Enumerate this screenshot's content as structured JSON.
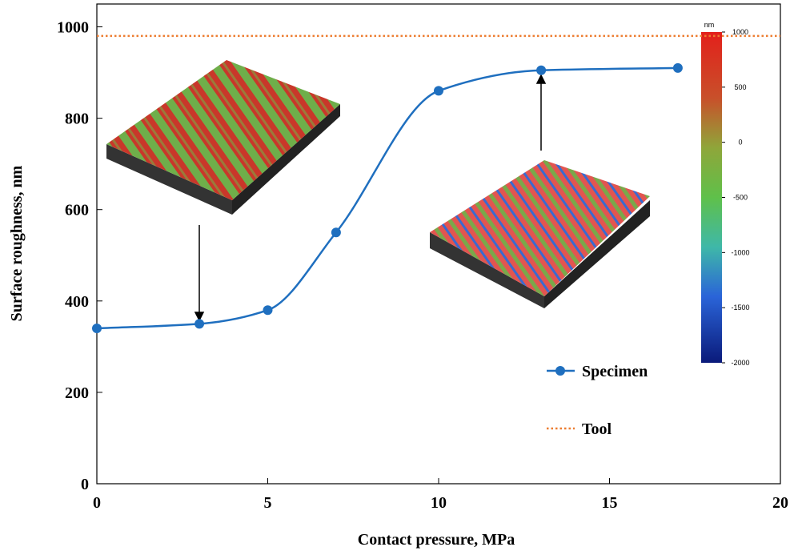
{
  "chart_data": {
    "type": "line",
    "x_label": "Contact pressure, MPa",
    "y_label": "Surface roughness, nm",
    "xlim": [
      0,
      20
    ],
    "xticks": [
      0,
      5,
      10,
      15,
      20
    ],
    "ylim": [
      0,
      1050
    ],
    "yticks": [
      0,
      200,
      400,
      600,
      800,
      1000
    ],
    "legend": "center right",
    "series": [
      {
        "name": "Specimen",
        "color": "#1f6fbf",
        "style": "solid",
        "marker": true,
        "x": [
          0,
          3,
          5,
          7,
          10,
          13,
          17
        ],
        "values": [
          340,
          350,
          380,
          550,
          860,
          905,
          910
        ]
      },
      {
        "name": "Tool",
        "color": "#ed7d31",
        "style": "dotted",
        "marker": false,
        "x": [
          0,
          20
        ],
        "values": [
          980,
          980
        ]
      }
    ],
    "colorbar": {
      "label": "nm",
      "clim": [
        -2000,
        1000
      ],
      "ticks": [
        1000,
        500,
        0,
        -500,
        -1000,
        -1500,
        -2000
      ]
    }
  }
}
